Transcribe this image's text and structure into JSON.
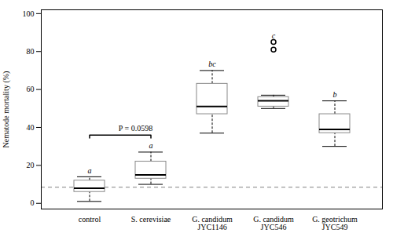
{
  "chart_data": {
    "type": "box",
    "categories": [
      "control",
      "S. cerevisiae",
      "G. candidum\nJYC1146",
      "G. candidum\nJYC546",
      "G. geotrichum\nJYC549"
    ],
    "boxes": [
      {
        "q1": 6,
        "median": 8,
        "q3": 12,
        "whisker_low": 1,
        "whisker_high": 14,
        "outliers": []
      },
      {
        "q1": 13,
        "median": 15,
        "q3": 22,
        "whisker_low": 10,
        "whisker_high": 27,
        "outliers": []
      },
      {
        "q1": 47,
        "median": 51,
        "q3": 63,
        "whisker_low": 37,
        "whisker_high": 70,
        "outliers": []
      },
      {
        "q1": 51,
        "median": 54,
        "q3": 56,
        "whisker_low": 50,
        "whisker_high": 57,
        "outliers": [
          81,
          85
        ]
      },
      {
        "q1": 37,
        "median": 39,
        "q3": 47,
        "whisker_low": 30,
        "whisker_high": 54,
        "outliers": []
      }
    ],
    "letters": [
      "a",
      "a",
      "bc",
      "c",
      "b"
    ],
    "ylabel": "Nematode mortality (%)",
    "ylim": [
      -3,
      102
    ],
    "yticks": [
      0,
      20,
      40,
      60,
      80,
      100
    ],
    "reference_line": {
      "value": 8.5,
      "line_style": "dashed"
    },
    "annotations": [
      {
        "text": "P = 0.0598",
        "from": "control",
        "to": "S. cerevisiae",
        "y": 36
      }
    ],
    "color": "#888888",
    "grid": false
  }
}
